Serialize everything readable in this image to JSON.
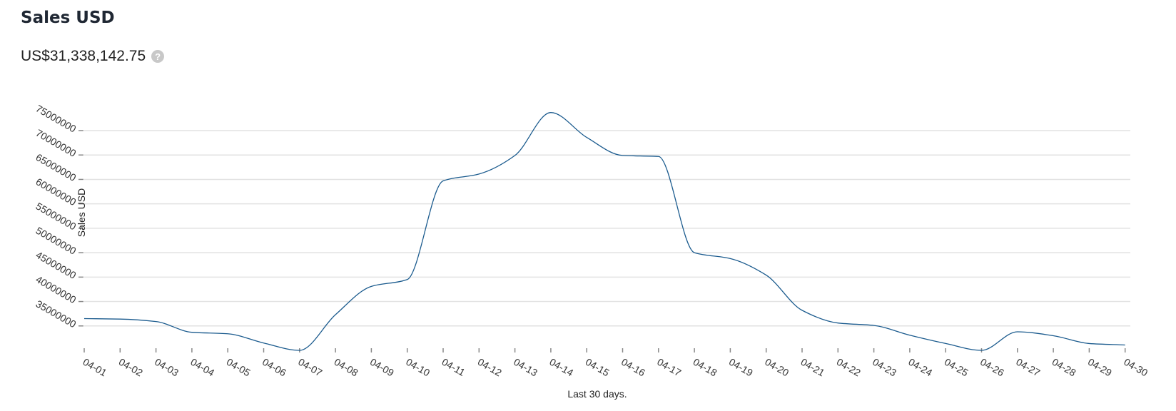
{
  "header": {
    "title": "Sales USD",
    "total": "US$31,338,142.75",
    "help_icon": "question-circle-icon"
  },
  "chart_data": {
    "type": "line",
    "title": "",
    "xlabel": "Last 30 days.",
    "ylabel": "Sales USD",
    "ylim": [
      30000000,
      78700000
    ],
    "grid": true,
    "line_color": "#1b5b8e",
    "y_ticks": [
      "35000000",
      "40000000",
      "45000000",
      "50000000",
      "55000000",
      "60000000",
      "65000000",
      "70000000",
      "75000000"
    ],
    "categories": [
      "04-01",
      "04-02",
      "04-03",
      "04-04",
      "04-05",
      "04-06",
      "04-07",
      "04-08",
      "04-09",
      "04-10",
      "04-11",
      "04-12",
      "04-13",
      "04-14",
      "04-15",
      "04-16",
      "04-17",
      "04-18",
      "04-19",
      "04-20",
      "04-21",
      "04-22",
      "04-23",
      "04-24",
      "04-25",
      "04-26",
      "04-27",
      "04-28",
      "04-29",
      "04-30"
    ],
    "series": [
      {
        "values": [
          36500000,
          36400000,
          35900000,
          33700000,
          33400000,
          31500000,
          30000000,
          37300000,
          43100000,
          44500000,
          64700000,
          66100000,
          69900000,
          78700000,
          73600000,
          69900000,
          69700000,
          50000000,
          48800000,
          45400000,
          38200000,
          35600000,
          35100000,
          33100000,
          31400000,
          30000000,
          33800000,
          33000000,
          31400000,
          31100000
        ]
      }
    ]
  }
}
